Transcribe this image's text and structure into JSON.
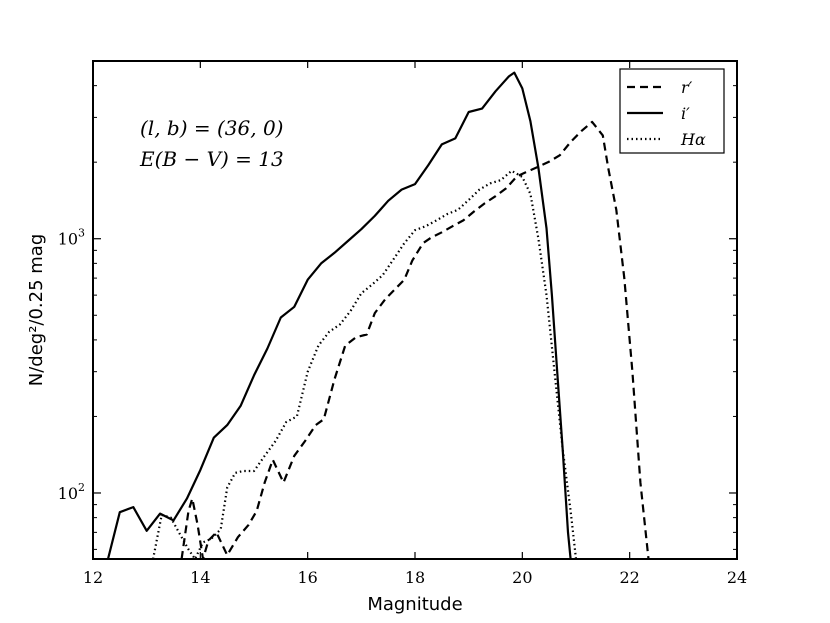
{
  "chart_data": {
    "type": "line",
    "xlabel": "Magnitude",
    "ylabel": "N/deg²/0.25 mag",
    "xlim": [
      12,
      24
    ],
    "ylim": [
      55,
      5000
    ],
    "y_scale": "log",
    "x_ticks": [
      12,
      14,
      16,
      18,
      20,
      22,
      24
    ],
    "y_tick_labels": [
      {
        "value": 100,
        "base": "10",
        "exp": "2"
      },
      {
        "value": 1000,
        "base": "10",
        "exp": "3"
      }
    ],
    "annotations": [
      "(l, b) = (36, 0)",
      "E(B − V) = 13"
    ],
    "legend": {
      "position": "top-right"
    },
    "series": [
      {
        "name": "r′",
        "style": "dashed",
        "color": "#000000",
        "points": [
          [
            13.65,
            55
          ],
          [
            13.78,
            85
          ],
          [
            13.85,
            95
          ],
          [
            13.95,
            75
          ],
          [
            14.05,
            55
          ],
          [
            14.15,
            65
          ],
          [
            14.3,
            70
          ],
          [
            14.5,
            57
          ],
          [
            14.7,
            67
          ],
          [
            14.9,
            75
          ],
          [
            15.05,
            85
          ],
          [
            15.2,
            110
          ],
          [
            15.35,
            135
          ],
          [
            15.55,
            110
          ],
          [
            15.75,
            140
          ],
          [
            15.95,
            160
          ],
          [
            16.15,
            185
          ],
          [
            16.3,
            195
          ],
          [
            16.5,
            280
          ],
          [
            16.7,
            380
          ],
          [
            16.9,
            410
          ],
          [
            17.1,
            420
          ],
          [
            17.25,
            510
          ],
          [
            17.45,
            580
          ],
          [
            17.65,
            640
          ],
          [
            17.8,
            690
          ],
          [
            17.95,
            820
          ],
          [
            18.15,
            960
          ],
          [
            18.3,
            1010
          ],
          [
            18.5,
            1060
          ],
          [
            18.7,
            1120
          ],
          [
            18.9,
            1180
          ],
          [
            19.1,
            1280
          ],
          [
            19.3,
            1380
          ],
          [
            19.5,
            1470
          ],
          [
            19.7,
            1580
          ],
          [
            19.9,
            1760
          ],
          [
            20.1,
            1840
          ],
          [
            20.3,
            1920
          ],
          [
            20.5,
            2010
          ],
          [
            20.7,
            2130
          ],
          [
            20.9,
            2400
          ],
          [
            21.1,
            2650
          ],
          [
            21.3,
            2880
          ],
          [
            21.5,
            2550
          ],
          [
            21.6,
            1900
          ],
          [
            21.75,
            1300
          ],
          [
            21.9,
            700
          ],
          [
            22.05,
            300
          ],
          [
            22.2,
            110
          ],
          [
            22.35,
            55
          ]
        ]
      },
      {
        "name": "i′",
        "style": "solid",
        "color": "#000000",
        "points": [
          [
            12.28,
            55
          ],
          [
            12.5,
            84
          ],
          [
            12.75,
            88
          ],
          [
            13.0,
            71
          ],
          [
            13.25,
            83
          ],
          [
            13.5,
            78
          ],
          [
            13.75,
            95
          ],
          [
            14.0,
            123
          ],
          [
            14.25,
            165
          ],
          [
            14.5,
            185
          ],
          [
            14.75,
            220
          ],
          [
            15.0,
            290
          ],
          [
            15.25,
            370
          ],
          [
            15.5,
            490
          ],
          [
            15.75,
            540
          ],
          [
            16.0,
            690
          ],
          [
            16.25,
            800
          ],
          [
            16.5,
            880
          ],
          [
            16.75,
            980
          ],
          [
            17.0,
            1090
          ],
          [
            17.25,
            1230
          ],
          [
            17.5,
            1410
          ],
          [
            17.75,
            1560
          ],
          [
            18.0,
            1640
          ],
          [
            18.25,
            1950
          ],
          [
            18.5,
            2350
          ],
          [
            18.75,
            2480
          ],
          [
            19.0,
            3150
          ],
          [
            19.25,
            3250
          ],
          [
            19.5,
            3800
          ],
          [
            19.75,
            4350
          ],
          [
            19.85,
            4500
          ],
          [
            20.0,
            3900
          ],
          [
            20.15,
            2900
          ],
          [
            20.3,
            1900
          ],
          [
            20.45,
            1100
          ],
          [
            20.55,
            600
          ],
          [
            20.65,
            300
          ],
          [
            20.75,
            150
          ],
          [
            20.85,
            70
          ],
          [
            20.9,
            55
          ]
        ]
      },
      {
        "name": "Hα",
        "style": "dotted",
        "color": "#000000",
        "points": [
          [
            13.12,
            55
          ],
          [
            13.28,
            82
          ],
          [
            13.45,
            80
          ],
          [
            13.6,
            70
          ],
          [
            13.78,
            60
          ],
          [
            13.9,
            55
          ],
          [
            14.05,
            64
          ],
          [
            14.2,
            66
          ],
          [
            14.38,
            72
          ],
          [
            14.5,
            105
          ],
          [
            14.65,
            120
          ],
          [
            14.8,
            122
          ],
          [
            15.0,
            122
          ],
          [
            15.2,
            140
          ],
          [
            15.4,
            160
          ],
          [
            15.6,
            190
          ],
          [
            15.8,
            200
          ],
          [
            16.0,
            300
          ],
          [
            16.2,
            380
          ],
          [
            16.4,
            430
          ],
          [
            16.6,
            460
          ],
          [
            16.8,
            520
          ],
          [
            17.0,
            610
          ],
          [
            17.2,
            660
          ],
          [
            17.4,
            720
          ],
          [
            17.6,
            830
          ],
          [
            17.8,
            960
          ],
          [
            18.0,
            1080
          ],
          [
            18.2,
            1120
          ],
          [
            18.4,
            1180
          ],
          [
            18.6,
            1250
          ],
          [
            18.8,
            1300
          ],
          [
            19.0,
            1420
          ],
          [
            19.2,
            1560
          ],
          [
            19.4,
            1650
          ],
          [
            19.6,
            1700
          ],
          [
            19.8,
            1850
          ],
          [
            20.0,
            1750
          ],
          [
            20.15,
            1500
          ],
          [
            20.3,
            1000
          ],
          [
            20.45,
            600
          ],
          [
            20.6,
            300
          ],
          [
            20.75,
            150
          ],
          [
            20.9,
            85
          ],
          [
            21.0,
            55
          ]
        ]
      }
    ]
  }
}
